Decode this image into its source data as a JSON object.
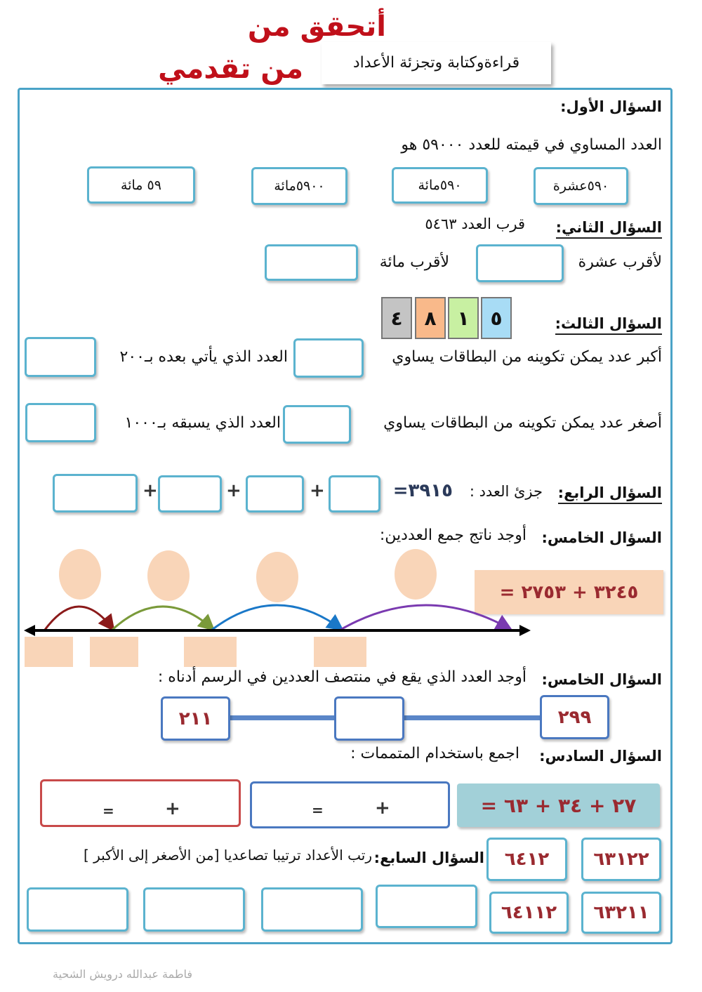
{
  "title": {
    "line1": "أتحقق من",
    "line2": "من تقدمي",
    "subtitle": "قراءةوكتابة وتجزئة الأعداد",
    "color": "#c0101a"
  },
  "q1": {
    "heading": "السؤال الأول:",
    "text": "العدد المساوي في قيمته للعدد ٥٩٠٠٠ هو",
    "options": [
      "٥٩٠عشرة",
      "٥٩٠مائة",
      "٥٩٠٠مائة",
      "٥٩ مائة"
    ]
  },
  "q2": {
    "heading": "السؤال الثاني:",
    "text": "قرب العدد ٥٤٦٣",
    "tens": "لأقرب عشرة",
    "hundreds": "لأقرب مائة"
  },
  "q3": {
    "heading": "السؤال الثالث:",
    "cards": [
      {
        "digit": "٤",
        "color": "#c4c4c4"
      },
      {
        "digit": "٨",
        "color": "#f9b98a"
      },
      {
        "digit": "١",
        "color": "#c8f0a2"
      },
      {
        "digit": "٥",
        "color": "#a8dcf5"
      }
    ],
    "largest": "أكبر عدد يمكن تكوينه من البطاقات يساوي",
    "after": "العدد الذي يأتي بعده بـ٢٠٠",
    "smallest": "أصغر عدد يمكن تكوينه من البطاقات يساوي",
    "before": "العدد الذي يسبقه بـ١٠٠٠"
  },
  "q4": {
    "heading": "السؤال الرابع:",
    "text": "جزئ العدد :",
    "number": "٣٩١٥=",
    "plus": "+"
  },
  "q5": {
    "heading": "السؤال الخامس:",
    "text": "أوجد ناتج جمع العددين:",
    "expression": "= ٣٢٤٥ + ٢٧٥٣",
    "arc_colors": [
      "#8b1a1a",
      "#7a9a3a",
      "#1a78c8",
      "#7a3ab0"
    ]
  },
  "q5b": {
    "heading": "السؤال الخامس:",
    "text": "أوجد العدد الذي يقع في منتصف العددين في الرسم أدناه :",
    "left": "٢١١",
    "right": "٢٩٩"
  },
  "q6": {
    "heading": "السؤال السادس:",
    "text": "اجمع باستخدام المتممات :",
    "expression": "= ٢٧ + ٣٤ + ٦٣",
    "plus": "+",
    "equals": "="
  },
  "q7": {
    "heading": "السؤال السابع:",
    "text": "رتب الأعداد ترتيبا تصاعديا [من الأصغر إلى الأكبر ]",
    "numbers": [
      "٦٣١٢٢",
      "٦٤١٢",
      "٦٣٢١١",
      "٦٤١١٢"
    ]
  },
  "footer": {
    "author": "فاطمة عبدالله درويش الشحية"
  }
}
